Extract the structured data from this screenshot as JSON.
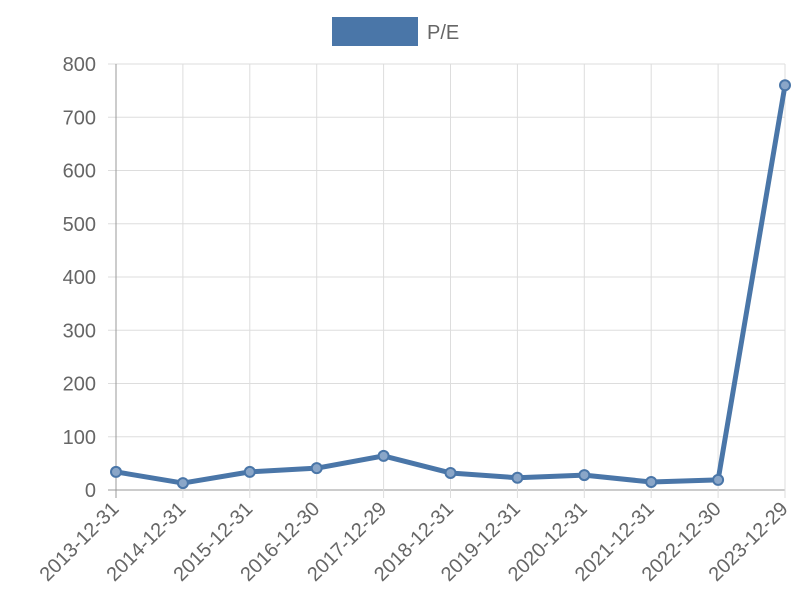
{
  "chart_data": {
    "type": "line",
    "categories": [
      "2013-12-31",
      "2014-12-31",
      "2015-12-31",
      "2016-12-30",
      "2017-12-29",
      "2018-12-31",
      "2019-12-31",
      "2020-12-31",
      "2021-12-31",
      "2022-12-30",
      "2023-12-29"
    ],
    "series": [
      {
        "name": "P/E",
        "color": "#4a76a8",
        "values": [
          34,
          13,
          34,
          41,
          64,
          32,
          23,
          28,
          15,
          19,
          760
        ]
      }
    ],
    "ylim": [
      0,
      800
    ],
    "yticks": [
      0,
      100,
      200,
      300,
      400,
      500,
      600,
      700,
      800
    ],
    "grid": true,
    "legend": "top"
  }
}
